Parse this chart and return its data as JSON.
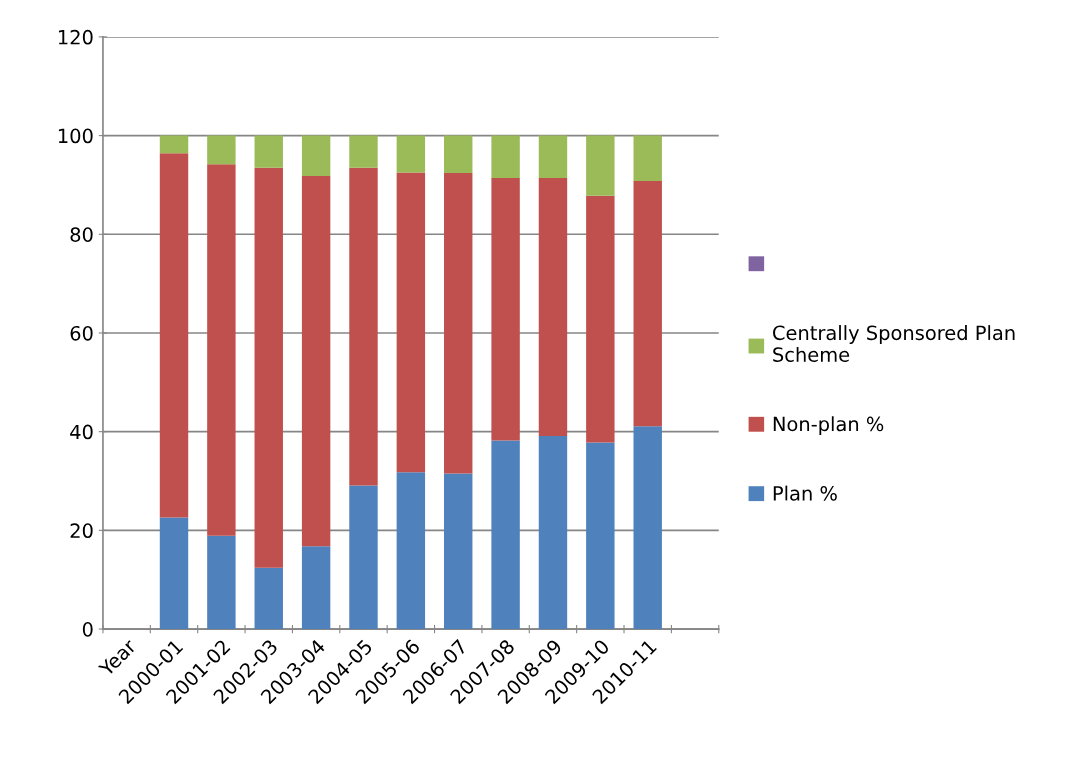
{
  "chart_data": {
    "type": "bar",
    "stacked": true,
    "categories": [
      "Year",
      "2000-01",
      "2001-02",
      "2002-03",
      "2003-04",
      "2004-05",
      "2005-06",
      "2006-07",
      "2007-08",
      "2008-09",
      "2009-10",
      "2010-11",
      null
    ],
    "series": [
      {
        "name": "Plan %",
        "color": "#4f81bd",
        "values": [
          null,
          22.6,
          18.9,
          12.4,
          16.8,
          29.1,
          31.8,
          31.5,
          38.2,
          39.1,
          37.8,
          41.1,
          null
        ]
      },
      {
        "name": "Non-plan %",
        "color": "#c0504d",
        "values": [
          null,
          73.8,
          75.3,
          81.1,
          75.0,
          64.4,
          60.7,
          60.9,
          53.2,
          52.3,
          50.0,
          49.7,
          null
        ]
      },
      {
        "name": "Centrally Sponsored Plan\nScheme",
        "color": "#9bbb59",
        "values": [
          null,
          3.6,
          5.8,
          6.5,
          8.2,
          6.5,
          7.5,
          7.6,
          8.6,
          8.6,
          12.2,
          9.2,
          null
        ]
      },
      {
        "name": null,
        "color": "#8064a2",
        "values": [
          null,
          null,
          null,
          null,
          null,
          null,
          null,
          null,
          null,
          null,
          null,
          null,
          null
        ]
      }
    ],
    "ylim": [
      0,
      120
    ],
    "yticks": [
      0,
      20,
      40,
      60,
      80,
      100,
      120
    ],
    "grid": "y",
    "legend": "right"
  }
}
